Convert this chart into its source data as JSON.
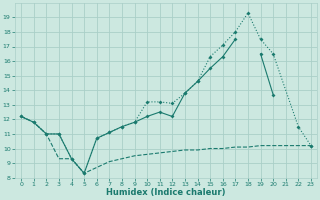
{
  "xlabel": "Humidex (Indice chaleur)",
  "bg_color": "#cce8e0",
  "grid_color": "#aacfc8",
  "line_color": "#1a7a6e",
  "xlim": [
    -0.5,
    23.5
  ],
  "ylim": [
    8,
    20
  ],
  "yticks": [
    8,
    9,
    10,
    11,
    12,
    13,
    14,
    15,
    16,
    17,
    18,
    19
  ],
  "xticks": [
    0,
    1,
    2,
    3,
    4,
    5,
    6,
    7,
    8,
    9,
    10,
    11,
    12,
    13,
    14,
    15,
    16,
    17,
    18,
    19,
    20,
    21,
    22,
    23
  ],
  "line_dotted_x": [
    0,
    1,
    2,
    3,
    4,
    5,
    6,
    7,
    8,
    9,
    10,
    11,
    12,
    13,
    14,
    15,
    16,
    17,
    18,
    19,
    20,
    22,
    23
  ],
  "line_dotted_y": [
    12.2,
    11.8,
    11.0,
    11.0,
    9.3,
    8.3,
    10.7,
    11.1,
    11.5,
    11.8,
    13.2,
    13.2,
    13.1,
    13.8,
    14.6,
    16.3,
    17.1,
    18.0,
    19.3,
    17.5,
    16.5,
    11.5,
    10.2
  ],
  "line_solid_x": [
    0,
    1,
    2,
    3,
    4,
    5,
    6,
    7,
    8,
    9,
    10,
    11,
    12,
    13,
    14,
    15,
    16,
    17,
    18,
    19,
    20,
    22,
    23
  ],
  "line_solid_y": [
    12.2,
    11.8,
    11.0,
    11.0,
    9.3,
    8.3,
    10.7,
    11.1,
    11.5,
    11.8,
    12.2,
    12.5,
    12.2,
    13.8,
    14.6,
    15.5,
    16.3,
    17.5,
    null,
    16.5,
    13.7,
    null,
    10.2
  ],
  "line_dashed_x": [
    0,
    1,
    2,
    3,
    4,
    5,
    6,
    7,
    8,
    9,
    10,
    11,
    12,
    13,
    14,
    15,
    16,
    17,
    18,
    19,
    20,
    21,
    22,
    23
  ],
  "line_dashed_y": [
    12.2,
    11.8,
    11.0,
    9.3,
    9.3,
    8.3,
    8.7,
    9.1,
    9.3,
    9.5,
    9.6,
    9.7,
    9.8,
    9.9,
    9.9,
    10.0,
    10.0,
    10.1,
    10.1,
    10.2,
    10.2,
    10.2,
    10.2,
    10.2
  ]
}
